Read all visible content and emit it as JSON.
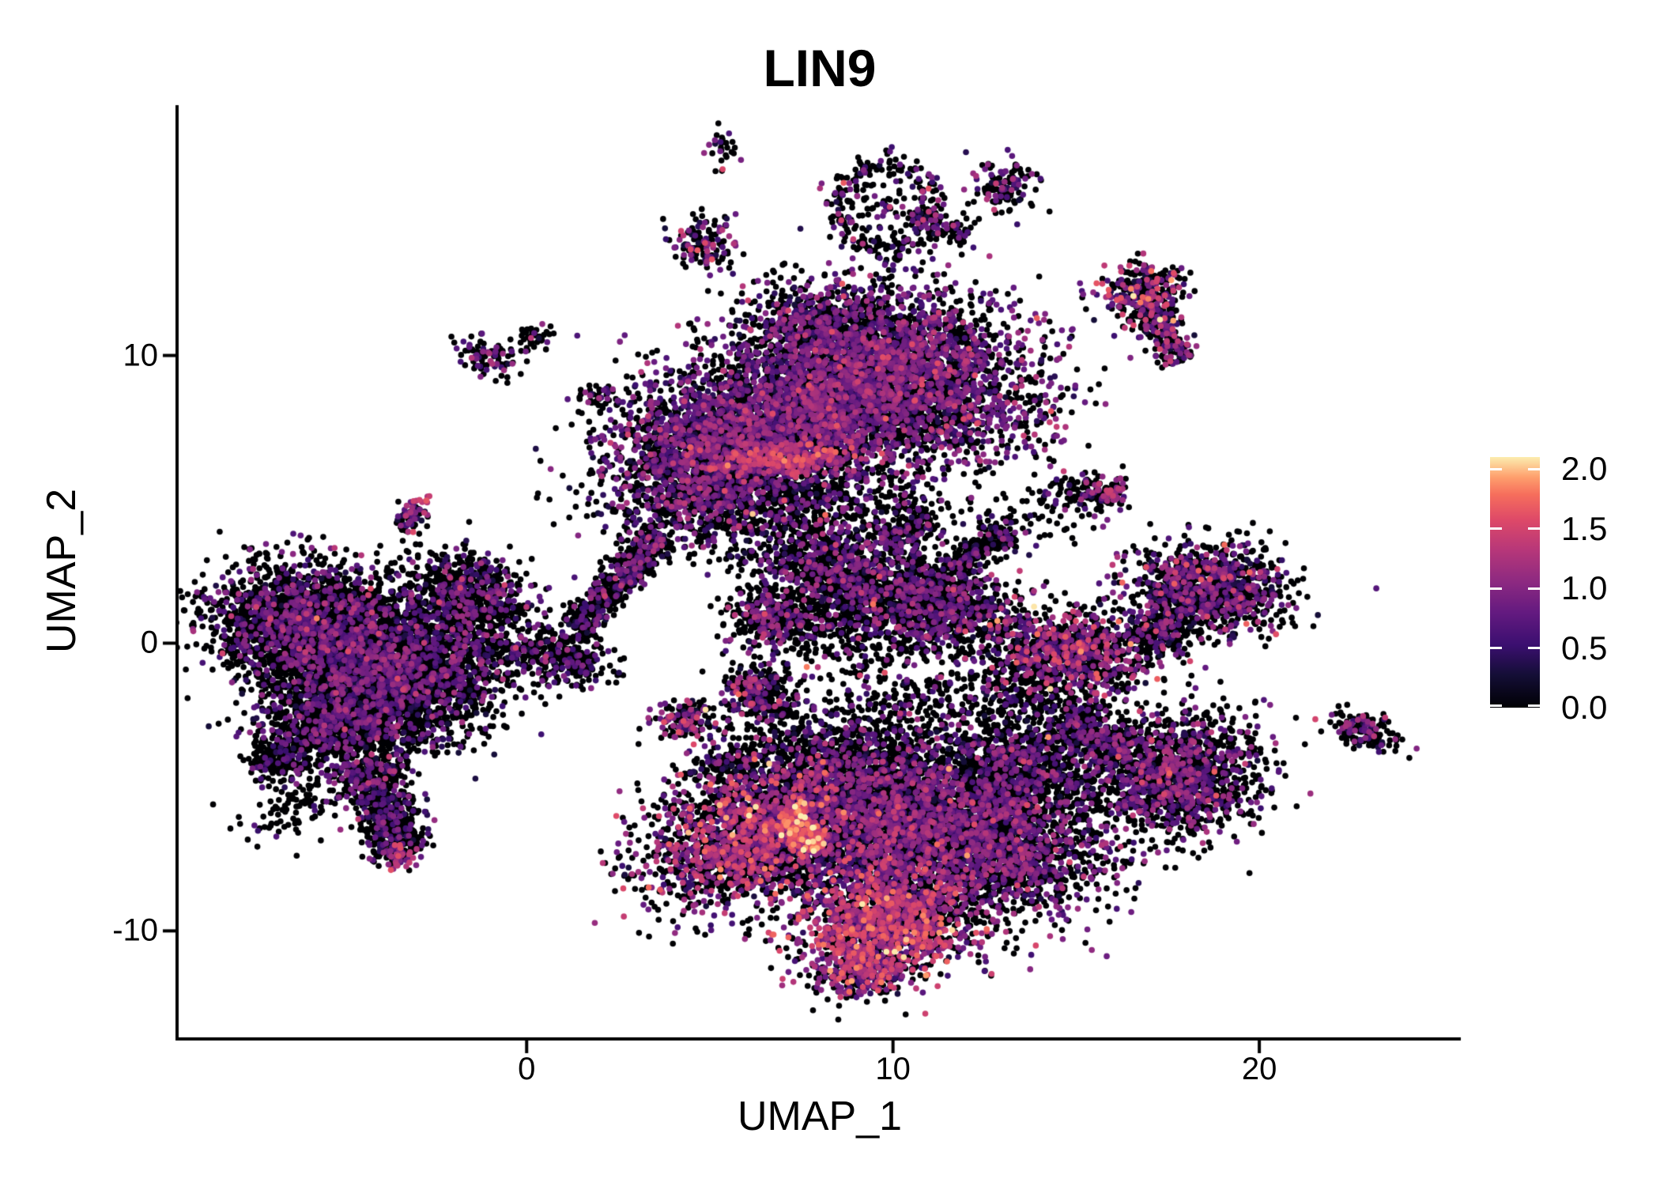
{
  "title": "LIN9",
  "axes": {
    "x": {
      "label": "UMAP_1",
      "ticks": [
        "0",
        "10",
        "20"
      ],
      "tick_values": [
        0,
        10,
        20
      ],
      "range": [
        -9.5,
        25.5
      ]
    },
    "y": {
      "label": "UMAP_2",
      "ticks": [
        "10",
        "0",
        "-10"
      ],
      "tick_values": [
        10,
        0,
        -10
      ],
      "range": [
        -13.7,
        18.7
      ]
    }
  },
  "legend": {
    "tick_labels": [
      "2.0",
      "1.5",
      "1.0",
      "0.5",
      "0.0"
    ],
    "tick_values": [
      2.0,
      1.5,
      1.0,
      0.5,
      0.0
    ],
    "vmax": 2.1
  },
  "chart_data": {
    "type": "scatter",
    "subtype": "umap-feature-plot",
    "title": "LIN9",
    "xlabel": "UMAP_1",
    "ylabel": "UMAP_2",
    "xlim": [
      -9.5,
      25.5
    ],
    "ylim": [
      -13.7,
      18.7
    ],
    "grid": false,
    "legend_position": "right",
    "colormap": "magma",
    "colormap_stops": [
      [
        0.0,
        "#000004"
      ],
      [
        0.13,
        "#140e36"
      ],
      [
        0.25,
        "#3b0f70"
      ],
      [
        0.38,
        "#641a80"
      ],
      [
        0.5,
        "#8c2981"
      ],
      [
        0.63,
        "#b73779"
      ],
      [
        0.75,
        "#de4968"
      ],
      [
        0.85,
        "#f66e5c"
      ],
      [
        0.92,
        "#fe9f6d"
      ],
      [
        1.0,
        "#fcedaf"
      ]
    ],
    "vmax": 2.1,
    "point_radius_px": 3.8,
    "seed": 1234,
    "total_points": 39800,
    "cluster_format": [
      "cx",
      "cy",
      "sx",
      "sy",
      "rot_deg",
      "n",
      "frac_zero",
      "mu_expr",
      "sigma_expr",
      "shape(g=gauss,s=streak,r=ring)"
    ],
    "clusters": [
      [
        -5.9,
        0.6,
        1.35,
        1.05,
        -15,
        2500,
        0.74,
        0.75,
        0.28,
        "g"
      ],
      [
        -3.7,
        -1.1,
        1.35,
        1.25,
        0,
        2500,
        0.74,
        0.75,
        0.28,
        "g"
      ],
      [
        -5.0,
        -2.6,
        1.1,
        0.85,
        20,
        1300,
        0.76,
        0.7,
        0.25,
        "g"
      ],
      [
        -3.9,
        -5.7,
        1.75,
        0.42,
        -74,
        700,
        0.72,
        0.7,
        0.3,
        "s"
      ],
      [
        -3.45,
        -7.45,
        0.28,
        0.22,
        0,
        70,
        0.55,
        1.0,
        0.35,
        "g"
      ],
      [
        -6.8,
        -4.1,
        0.38,
        0.3,
        0,
        130,
        0.8,
        0.6,
        0.2,
        "g"
      ],
      [
        -6.2,
        -5.6,
        0.8,
        0.5,
        35,
        110,
        0.85,
        0.6,
        0.2,
        "g"
      ],
      [
        -1.7,
        -0.9,
        0.9,
        0.9,
        0,
        300,
        0.8,
        0.65,
        0.25,
        "g"
      ],
      [
        -1.6,
        1.6,
        0.95,
        0.75,
        -35,
        750,
        0.72,
        0.75,
        0.28,
        "g"
      ],
      [
        2.5,
        2.15,
        2.0,
        0.28,
        56,
        620,
        0.74,
        0.7,
        0.28,
        "s"
      ],
      [
        1.0,
        -0.5,
        0.6,
        0.45,
        -15,
        300,
        0.72,
        0.7,
        0.28,
        "g"
      ],
      [
        2.0,
        8.6,
        0.3,
        0.25,
        0,
        50,
        0.7,
        0.8,
        0.3,
        "g"
      ],
      [
        -1.0,
        9.9,
        0.42,
        0.3,
        -20,
        85,
        0.6,
        0.85,
        0.35,
        "g"
      ],
      [
        0.2,
        10.6,
        0.22,
        0.22,
        0,
        40,
        0.75,
        0.7,
        0.3,
        "g"
      ],
      [
        -3.2,
        4.35,
        0.45,
        0.18,
        50,
        75,
        0.55,
        0.85,
        0.35,
        "s"
      ],
      [
        -2.88,
        4.95,
        0.12,
        0.12,
        0,
        8,
        0.0,
        1.4,
        0.15,
        "g"
      ],
      [
        4.8,
        13.9,
        0.45,
        0.5,
        0,
        130,
        0.62,
        0.85,
        0.35,
        "g"
      ],
      [
        5.35,
        17.3,
        0.18,
        0.45,
        0,
        30,
        0.7,
        0.8,
        0.3,
        "g"
      ],
      [
        9.9,
        9.3,
        1.9,
        1.45,
        -10,
        4100,
        0.52,
        0.8,
        0.3,
        "g"
      ],
      [
        5.0,
        6.6,
        1.35,
        1.4,
        0,
        2300,
        0.55,
        0.8,
        0.3,
        "g"
      ],
      [
        7.4,
        7.6,
        1.3,
        1.05,
        0,
        1400,
        0.55,
        0.8,
        0.3,
        "g"
      ],
      [
        7.0,
        4.9,
        2.1,
        0.95,
        0,
        950,
        0.78,
        0.7,
        0.3,
        "g"
      ],
      [
        7.1,
        6.35,
        0.95,
        0.3,
        5,
        170,
        0.15,
        1.35,
        0.22,
        "g"
      ],
      [
        7.8,
        11.1,
        0.8,
        0.6,
        0,
        350,
        0.6,
        0.8,
        0.3,
        "g"
      ],
      [
        8.6,
        2.4,
        1.15,
        0.8,
        -25,
        900,
        0.66,
        0.75,
        0.3,
        "g"
      ],
      [
        6.6,
        0.9,
        0.55,
        0.5,
        0,
        300,
        0.68,
        0.8,
        0.3,
        "g"
      ],
      [
        10.4,
        3.9,
        0.75,
        0.3,
        30,
        170,
        0.7,
        0.75,
        0.3,
        "s"
      ],
      [
        8.8,
        0.6,
        1.3,
        0.7,
        0,
        380,
        0.8,
        0.7,
        0.3,
        "g"
      ],
      [
        6.35,
        -1.7,
        0.5,
        0.45,
        -30,
        260,
        0.62,
        0.8,
        0.35,
        "g"
      ],
      [
        4.4,
        -2.7,
        0.45,
        0.35,
        0,
        140,
        0.6,
        0.9,
        0.4,
        "g"
      ],
      [
        5.4,
        -4.3,
        0.4,
        0.3,
        0,
        90,
        0.7,
        0.8,
        0.35,
        "g"
      ],
      [
        6.1,
        -6.6,
        1.5,
        1.05,
        35,
        2200,
        0.55,
        1.0,
        0.4,
        "g"
      ],
      [
        7.5,
        -6.5,
        0.8,
        0.25,
        -55,
        200,
        0.15,
        1.5,
        0.3,
        "s"
      ],
      [
        9.4,
        -6.1,
        1.55,
        1.45,
        0,
        2700,
        0.62,
        0.8,
        0.32,
        "g"
      ],
      [
        12.5,
        -6.7,
        1.65,
        1.25,
        -15,
        2700,
        0.6,
        0.8,
        0.3,
        "g"
      ],
      [
        9.8,
        -9.7,
        1.25,
        0.95,
        10,
        1500,
        0.42,
        1.15,
        0.35,
        "g"
      ],
      [
        9.3,
        -11.4,
        0.7,
        0.5,
        20,
        350,
        0.5,
        1.1,
        0.4,
        "g"
      ],
      [
        8.2,
        -3.6,
        1.6,
        0.8,
        0,
        550,
        0.8,
        0.7,
        0.3,
        "g"
      ],
      [
        13.6,
        -4.2,
        1.0,
        0.8,
        0,
        750,
        0.72,
        0.75,
        0.3,
        "g"
      ],
      [
        11.2,
        1.4,
        1.1,
        0.85,
        -20,
        1050,
        0.68,
        0.75,
        0.3,
        "g"
      ],
      [
        12.35,
        3.25,
        1.0,
        0.22,
        41,
        220,
        0.72,
        0.7,
        0.3,
        "s"
      ],
      [
        15.4,
        5.2,
        0.55,
        0.35,
        -10,
        150,
        0.7,
        0.8,
        0.35,
        "g"
      ],
      [
        16.05,
        5.3,
        0.15,
        0.18,
        0,
        25,
        0.2,
        1.2,
        0.15,
        "g"
      ],
      [
        14.8,
        -0.35,
        1.15,
        0.75,
        -8,
        1050,
        0.55,
        0.95,
        0.38,
        "g"
      ],
      [
        18.6,
        1.9,
        1.05,
        0.75,
        -12,
        1100,
        0.6,
        0.8,
        0.35,
        "g"
      ],
      [
        17.35,
        0.45,
        0.45,
        0.5,
        0,
        220,
        0.7,
        0.75,
        0.3,
        "g"
      ],
      [
        17.7,
        -4.6,
        1.15,
        1.05,
        0,
        1550,
        0.66,
        0.8,
        0.3,
        "g"
      ],
      [
        15.55,
        -3.25,
        1.0,
        0.3,
        -34,
        420,
        0.78,
        0.7,
        0.28,
        "s"
      ],
      [
        14.0,
        -2.0,
        1.1,
        0.55,
        -20,
        240,
        0.85,
        0.6,
        0.25,
        "g"
      ],
      [
        22.8,
        -3.0,
        0.5,
        0.28,
        -25,
        160,
        0.66,
        0.85,
        0.4,
        "g"
      ],
      [
        16.8,
        12.25,
        0.55,
        0.5,
        0,
        280,
        0.55,
        0.95,
        0.45,
        "g"
      ],
      [
        17.4,
        10.75,
        1.05,
        0.28,
        -62,
        240,
        0.55,
        0.9,
        0.4,
        "s"
      ],
      [
        9.8,
        15.2,
        1.3,
        1.5,
        0,
        300,
        0.72,
        0.75,
        0.3,
        "r"
      ],
      [
        11.3,
        14.55,
        0.85,
        0.22,
        -28,
        110,
        0.7,
        0.8,
        0.3,
        "s"
      ],
      [
        13.0,
        15.9,
        0.42,
        0.45,
        -20,
        120,
        0.65,
        0.8,
        0.35,
        "g"
      ],
      [
        -0.9,
        -0.2,
        0.8,
        0.25,
        -10,
        60,
        0.85,
        0.6,
        0.25,
        "g"
      ],
      [
        10.8,
        -2.0,
        1.5,
        0.8,
        -10,
        260,
        0.85,
        0.65,
        0.25,
        "g"
      ],
      [
        13.6,
        4.3,
        0.8,
        0.5,
        0,
        70,
        0.8,
        0.7,
        0.3,
        "g"
      ]
    ]
  }
}
